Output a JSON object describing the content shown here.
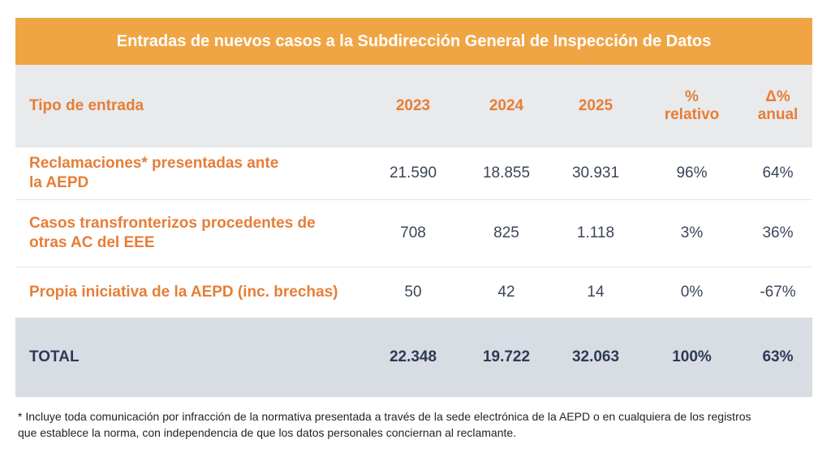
{
  "title": "Entradas de nuevos casos a la Subdirección General de Inspección de Datos",
  "colors": {
    "title_bg": "#f0a545",
    "accent_text": "#e57e37",
    "header_bg": "#e9eaeb",
    "total_bg": "#d8dde4"
  },
  "header": {
    "col_type": "Tipo de entrada",
    "col_2023": "2023",
    "col_2024": "2024",
    "col_2025": "2025",
    "col_pct_line1": "%",
    "col_pct_line2": "relativo",
    "col_delta_line1": "Δ%",
    "col_delta_line2": "anual"
  },
  "rows": [
    {
      "label_line1": "Reclamaciones* presentadas ante",
      "label_line2": "la AEPD",
      "y2023": "21.590",
      "y2024": "18.855",
      "y2025": "30.931",
      "pct": "96%",
      "delta": "64%"
    },
    {
      "label_line1": "Casos transfronterizos procedentes de",
      "label_line2": "otras AC del EEE",
      "y2023": "708",
      "y2024": "825",
      "y2025": "1.118",
      "pct": "3%",
      "delta": "36%"
    },
    {
      "label_line1": "Propia iniciativa de la AEPD (inc. brechas)",
      "label_line2": "",
      "y2023": "50",
      "y2024": "42",
      "y2025": "14",
      "pct": "0%",
      "delta": "-67%"
    }
  ],
  "total": {
    "label": "TOTAL",
    "y2023": "22.348",
    "y2024": "19.722",
    "y2025": "32.063",
    "pct": "100%",
    "delta": "63%"
  },
  "footnote_line1": "* Incluye toda comunicación por infracción de la normativa presentada a través de la sede electrónica de la AEPD o en cualquiera de los registros",
  "footnote_line2": "que establece la norma, con independencia de que los datos personales conciernan al reclamante."
}
